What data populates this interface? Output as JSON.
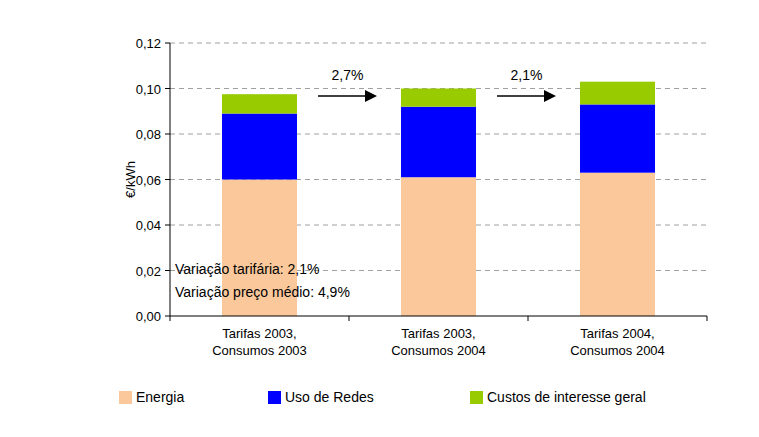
{
  "chart_data": {
    "type": "bar",
    "stacked": true,
    "grid": true,
    "legend": "bottom",
    "y_label": "€/kWh",
    "categories": [
      "Tarifas 2003, Consumos 2003",
      "Tarifas 2003, Consumos 2004",
      "Tarifas 2004, Consumos 2004"
    ],
    "series": [
      {
        "name": "Energia",
        "color": "#fac89b",
        "values": [
          0.06,
          0.061,
          0.063
        ]
      },
      {
        "name": "Uso de Redes",
        "color": "#0000ff",
        "values": [
          0.029,
          0.031,
          0.03
        ]
      },
      {
        "name": "Custos de interesse geral",
        "color": "#99cc00",
        "values": [
          0.0085,
          0.008,
          0.01
        ]
      }
    ],
    "ylim": [
      0,
      0.12
    ],
    "yticks": [
      {
        "value": 0,
        "label": "0,00"
      },
      {
        "value": 0.02,
        "label": "0,02"
      },
      {
        "value": 0.04,
        "label": "0,04"
      },
      {
        "value": 0.06,
        "label": "0,06"
      },
      {
        "value": 0.08,
        "label": "0,08"
      },
      {
        "value": 0.1,
        "label": "0,10"
      },
      {
        "value": 0.12,
        "label": "0,12"
      }
    ],
    "arrow_labels": [
      "2,7%",
      "2,1%"
    ],
    "notes": [
      "Variação tarifária: 2,1%",
      "Variação preço médio: 4,9%"
    ]
  }
}
